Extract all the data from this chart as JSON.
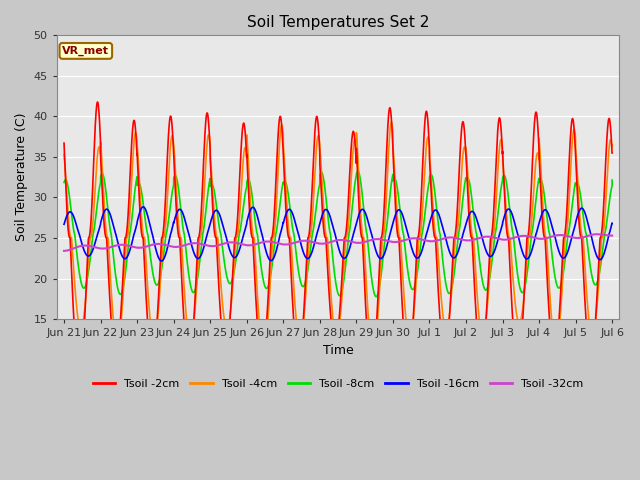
{
  "title": "Soil Temperatures Set 2",
  "xlabel": "Time",
  "ylabel": "Soil Temperature (C)",
  "ylim": [
    15,
    50
  ],
  "yticks": [
    15,
    20,
    25,
    30,
    35,
    40,
    45,
    50
  ],
  "fig_bg": "#c8c8c8",
  "plot_bg": "#e8e8e8",
  "annotation_text": "VR_met",
  "annotation_bg": "#ffffcc",
  "annotation_border": "#996600",
  "series": [
    {
      "label": "Tsoil -2cm",
      "color": "#ff0000",
      "lw": 1.2
    },
    {
      "label": "Tsoil -4cm",
      "color": "#ff8800",
      "lw": 1.2
    },
    {
      "label": "Tsoil -8cm",
      "color": "#00dd00",
      "lw": 1.2
    },
    {
      "label": "Tsoil -16cm",
      "color": "#0000ff",
      "lw": 1.2
    },
    {
      "label": "Tsoil -32cm",
      "color": "#cc44cc",
      "lw": 1.5
    }
  ],
  "xtick_labels": [
    "Jun 21",
    "Jun 22",
    "Jun 23",
    "Jun 24",
    "Jun 25",
    "Jun 26",
    "Jun 27",
    "Jun 28",
    "Jun 29",
    "Jun 30",
    "Jul 1",
    "Jul 2",
    "Jul 3",
    "Jul 4",
    "Jul 5",
    "Jul 6"
  ]
}
